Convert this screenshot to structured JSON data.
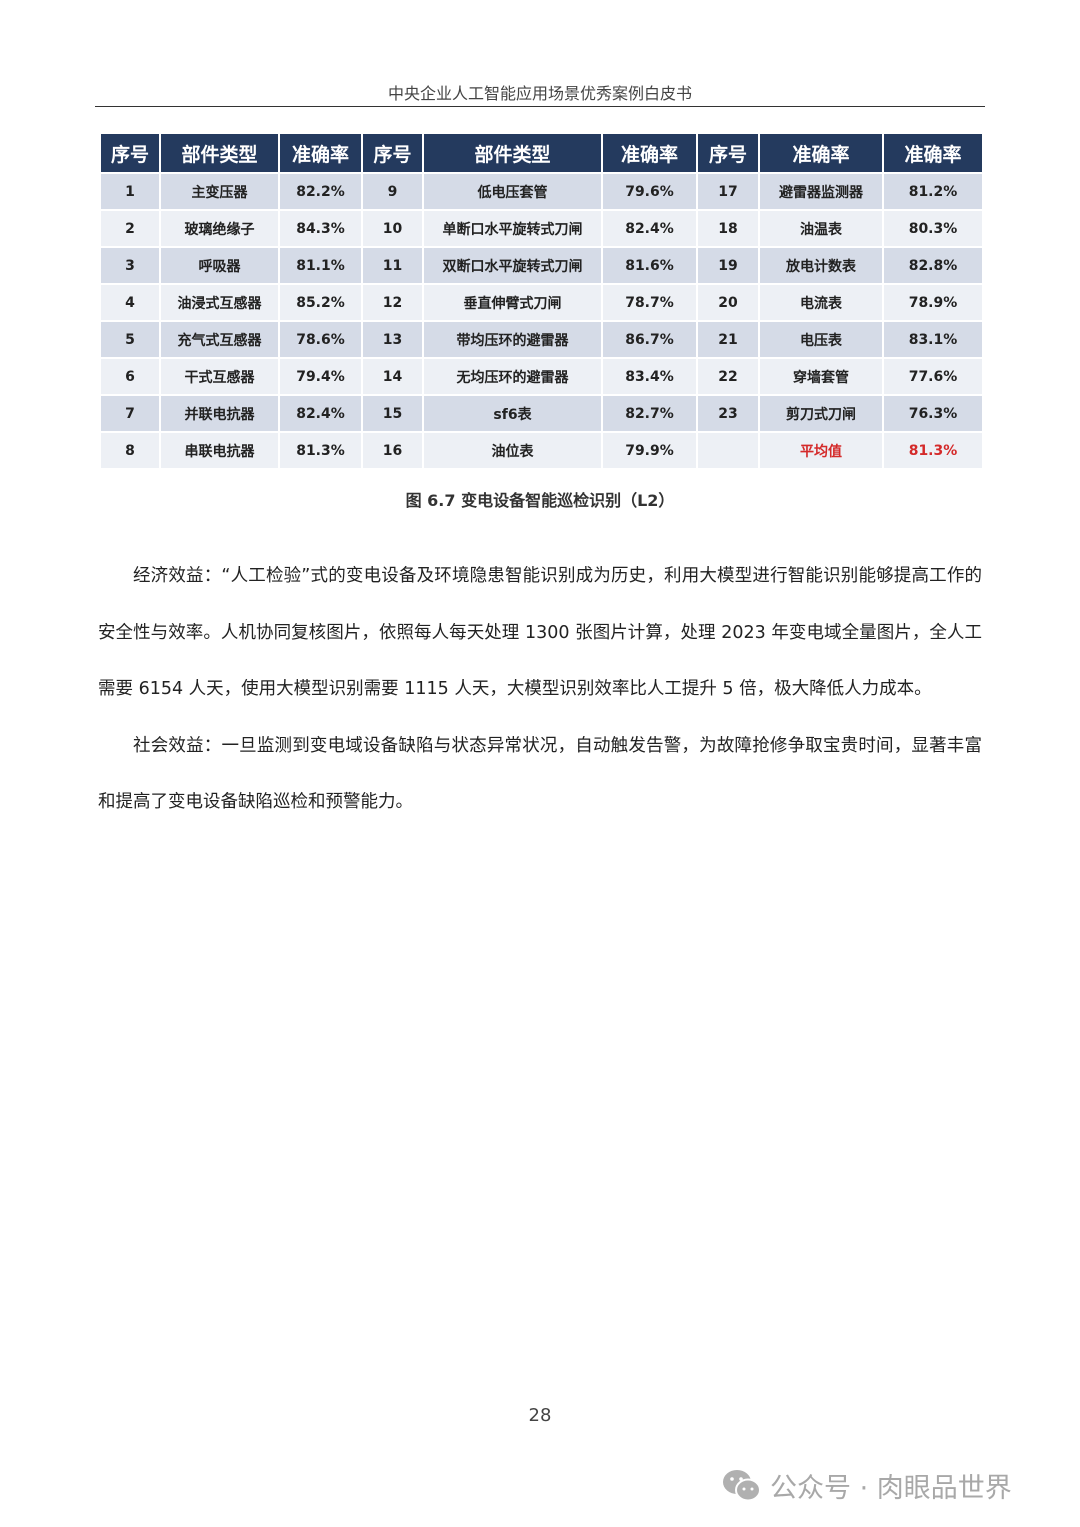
{
  "header": {
    "title": "中央企业人工智能应用场景优秀案例白皮书"
  },
  "table": {
    "headers": [
      "序号",
      "部件类型",
      "准确率",
      "序号",
      "部件类型",
      "准确率",
      "序号",
      "准确率",
      "准确率"
    ],
    "rows": [
      [
        "1",
        "主变压器",
        "82.2%",
        "9",
        "低电压套管",
        "79.6%",
        "17",
        "避雷器监测器",
        "81.2%"
      ],
      [
        "2",
        "玻璃绝缘子",
        "84.3%",
        "10",
        "单断口水平旋转式刀闸",
        "82.4%",
        "18",
        "油温表",
        "80.3%"
      ],
      [
        "3",
        "呼吸器",
        "81.1%",
        "11",
        "双断口水平旋转式刀闸",
        "81.6%",
        "19",
        "放电计数表",
        "82.8%"
      ],
      [
        "4",
        "油浸式互感器",
        "85.2%",
        "12",
        "垂直伸臂式刀闸",
        "78.7%",
        "20",
        "电流表",
        "78.9%"
      ],
      [
        "5",
        "充气式互感器",
        "78.6%",
        "13",
        "带均压环的避雷器",
        "86.7%",
        "21",
        "电压表",
        "83.1%"
      ],
      [
        "6",
        "干式互感器",
        "79.4%",
        "14",
        "无均压环的避雷器",
        "83.4%",
        "22",
        "穿墙套管",
        "77.6%"
      ],
      [
        "7",
        "并联电抗器",
        "82.4%",
        "15",
        "sf6表",
        "82.7%",
        "23",
        "剪刀式刀闸",
        "76.3%"
      ],
      [
        "8",
        "串联电抗器",
        "81.3%",
        "16",
        "油位表",
        "79.9%",
        "",
        "平均值",
        "81.3%"
      ]
    ],
    "highlight_color": "#d42a2a",
    "header_color": "#243a5e"
  },
  "caption": "图 6.7 变电设备智能巡检识别（L2）",
  "paragraphs": [
    "经济效益：“人工检验”式的变电设备及环境隐患智能识别成为历史，利用大模型进行智能识别能够提高工作的安全性与效率。人机协同复核图片，依照每人每天处理 1300 张图片计算，处理 2023 年变电域全量图片，全人工需要 6154 人天，使用大模型识别需要 1115 人天，大模型识别效率比人工提升 5 倍，极大降低人力成本。",
    "社会效益：一旦监测到变电域设备缺陷与状态异常状况，自动触发告警，为故障抢修争取宝贵时间，显著丰富和提高了变电设备缺陷巡检和预警能力。"
  ],
  "page_number": "28",
  "watermark": {
    "icon": "wechat-icon",
    "text": "公众号 · 肉眼品世界"
  }
}
